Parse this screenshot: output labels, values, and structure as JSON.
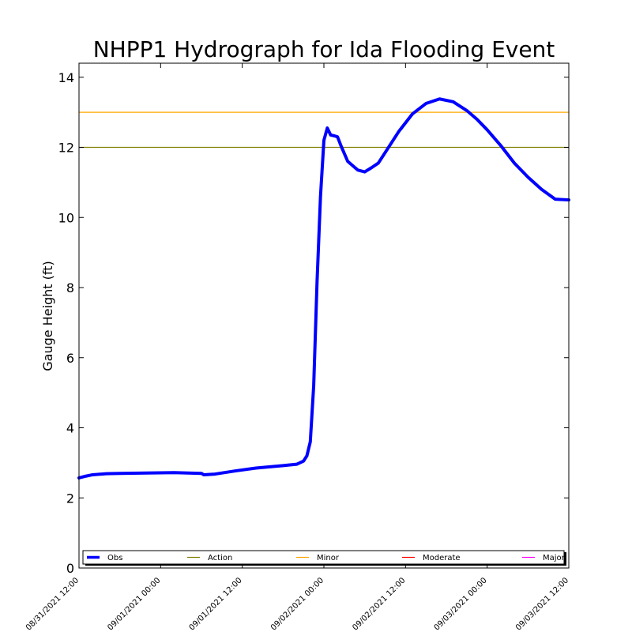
{
  "chart_data": {
    "type": "line",
    "title": "NHPP1 Hydrograph for Ida Flooding Event",
    "ylabel": "Gauge Height (ft)",
    "xlabel": "",
    "ylim": [
      0,
      14.4
    ],
    "yticks": [
      0,
      2,
      4,
      6,
      8,
      10,
      12,
      14
    ],
    "xlim": [
      "08/31/2021 12:00",
      "09/03/2021 12:00"
    ],
    "xticks": [
      "08/31/2021 12:00",
      "09/01/2021 00:00",
      "09/01/2021 12:00",
      "09/02/2021 00:00",
      "09/02/2021 12:00",
      "09/03/2021 00:00",
      "09/03/2021 12:00"
    ],
    "legend_position": "bottom",
    "series": [
      {
        "name": "Obs",
        "color": "#0000ff",
        "x": [
          "08/31/2021 12:00",
          "08/31/2021 13:00",
          "08/31/2021 14:00",
          "08/31/2021 16:00",
          "08/31/2021 18:00",
          "08/31/2021 22:00",
          "09/01/2021 02:00",
          "09/01/2021 06:00",
          "09/01/2021 06:20",
          "09/01/2021 08:00",
          "09/01/2021 11:00",
          "09/01/2021 14:00",
          "09/01/2021 18:00",
          "09/01/2021 20:00",
          "09/01/2021 21:00",
          "09/01/2021 21:30",
          "09/01/2021 22:00",
          "09/01/2021 22:30",
          "09/01/2021 23:00",
          "09/01/2021 23:30",
          "09/02/2021 00:00",
          "09/02/2021 00:30",
          "09/02/2021 01:00",
          "09/02/2021 01:30",
          "09/02/2021 02:00",
          "09/02/2021 02:30",
          "09/02/2021 03:30",
          "09/02/2021 05:00",
          "09/02/2021 06:00",
          "09/02/2021 07:00",
          "09/02/2021 08:00",
          "09/02/2021 09:00",
          "09/02/2021 11:00",
          "09/02/2021 13:00",
          "09/02/2021 15:00",
          "09/02/2021 17:00",
          "09/02/2021 19:00",
          "09/02/2021 21:00",
          "09/02/2021 22:30",
          "09/03/2021 00:00",
          "09/03/2021 02:00",
          "09/03/2021 04:00",
          "09/03/2021 06:00",
          "09/03/2021 08:00",
          "09/03/2021 10:00",
          "09/03/2021 12:00"
        ],
        "values": [
          2.57,
          2.62,
          2.66,
          2.69,
          2.7,
          2.71,
          2.72,
          2.7,
          2.66,
          2.68,
          2.77,
          2.85,
          2.92,
          2.96,
          3.05,
          3.2,
          3.6,
          5.2,
          8.2,
          10.6,
          12.2,
          12.55,
          12.35,
          12.33,
          12.3,
          12.05,
          11.6,
          11.35,
          11.3,
          11.42,
          11.55,
          11.85,
          12.45,
          12.95,
          13.25,
          13.38,
          13.3,
          13.05,
          12.8,
          12.5,
          12.05,
          11.55,
          11.15,
          10.8,
          10.52,
          10.5
        ]
      },
      {
        "name": "Action",
        "color": "#808000",
        "value": 12.0
      },
      {
        "name": "Minor",
        "color": "#ffa500",
        "value": 13.0
      },
      {
        "name": "Moderate",
        "color": "#ff0000"
      },
      {
        "name": "Major",
        "color": "#ff00ff"
      }
    ]
  }
}
